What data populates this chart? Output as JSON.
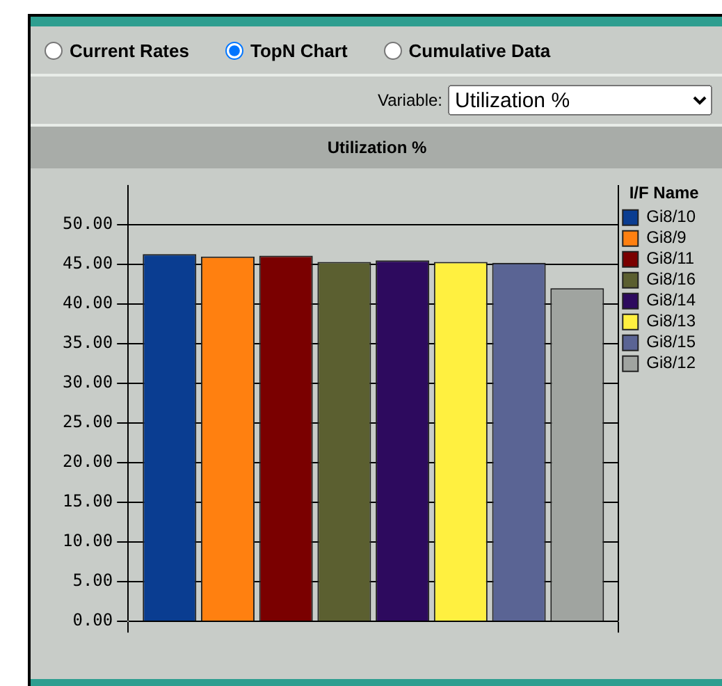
{
  "chart_data": {
    "type": "bar",
    "title": "Utilization %",
    "legend_title": "I/F Name",
    "legend": "right",
    "grid": true,
    "annotations": [
      "Current Rates",
      "TopN Chart",
      "Cumulative Data",
      "Variable:",
      "Utilization %"
    ],
    "categories": [
      null
    ],
    "ylim": [
      0,
      55
    ],
    "yticks": [
      {
        "value": 0,
        "label": "0.00"
      },
      {
        "value": 5,
        "label": "5.00"
      },
      {
        "value": 10,
        "label": "10.00"
      },
      {
        "value": 15,
        "label": "15.00"
      },
      {
        "value": 20,
        "label": "20.00"
      },
      {
        "value": 25,
        "label": "25.00"
      },
      {
        "value": 30,
        "label": "30.00"
      },
      {
        "value": 35,
        "label": "35.00"
      },
      {
        "value": 40,
        "label": "40.00"
      },
      {
        "value": 45,
        "label": "45.00"
      },
      {
        "value": 50,
        "label": "50.00"
      }
    ],
    "series": [
      {
        "name": "Gi8/10",
        "color": "#0a3d91",
        "values": [
          46.3
        ]
      },
      {
        "name": "Gi8/9",
        "color": "#ff8010",
        "values": [
          46.0
        ]
      },
      {
        "name": "Gi8/11",
        "color": "#7a0000",
        "values": [
          46.1
        ]
      },
      {
        "name": "Gi8/16",
        "color": "#5b5f30",
        "values": [
          45.3
        ]
      },
      {
        "name": "Gi8/14",
        "color": "#2d0a5e",
        "values": [
          45.5
        ]
      },
      {
        "name": "Gi8/13",
        "color": "#fff040",
        "values": [
          45.3
        ]
      },
      {
        "name": "Gi8/15",
        "color": "#5a6494",
        "values": [
          45.2
        ]
      },
      {
        "name": "Gi8/12",
        "color": "#a0a4a0",
        "values": [
          42.0
        ]
      }
    ]
  }
}
